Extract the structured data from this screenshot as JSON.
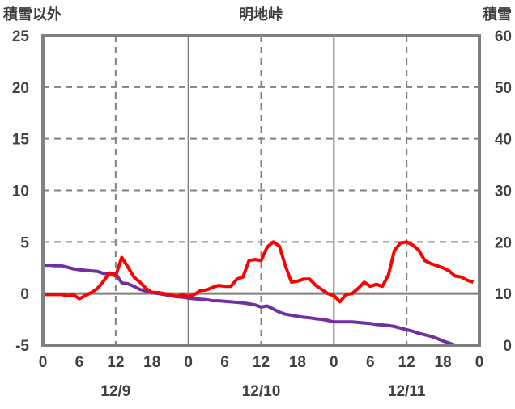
{
  "chart_data": {
    "type": "line",
    "title": "明地峠",
    "ylabel_left": "積雪以外",
    "ylabel_right": "積雪",
    "ylim_left": [
      -5,
      25
    ],
    "ylim_right": [
      0,
      60
    ],
    "yticks_left": [
      "25",
      "20",
      "15",
      "10",
      "5",
      "0",
      "-5"
    ],
    "yticks_right": [
      "60",
      "50",
      "40",
      "30",
      "20",
      "10",
      "0"
    ],
    "xlim_hours": [
      0,
      72
    ],
    "xticks": [
      "0",
      "6",
      "12",
      "18",
      "0",
      "6",
      "12",
      "18",
      "0",
      "6",
      "12",
      "18",
      "0"
    ],
    "date_labels": [
      "12/9",
      "12/10",
      "12/11"
    ],
    "grid": true,
    "x_hours": [
      0,
      1,
      2,
      3,
      4,
      5,
      6,
      7,
      8,
      9,
      10,
      11,
      12,
      13,
      14,
      15,
      16,
      17,
      18,
      19,
      20,
      21,
      22,
      23,
      24,
      25,
      26,
      27,
      28,
      29,
      30,
      31,
      32,
      33,
      34,
      35,
      36,
      37,
      38,
      39,
      40,
      41,
      42,
      43,
      44,
      45,
      46,
      47,
      48,
      49,
      50,
      51,
      52,
      53,
      54,
      55,
      56,
      57,
      58,
      59,
      60,
      61,
      62,
      63,
      64,
      65,
      66,
      67,
      68,
      69,
      70,
      71
    ],
    "series": [
      {
        "name": "積雪以外",
        "axis": "left",
        "color": "#ff0000",
        "values": [
          -0.1,
          -0.1,
          -0.1,
          -0.1,
          -0.2,
          -0.1,
          -0.5,
          -0.2,
          0.1,
          0.5,
          1.2,
          2.0,
          1.7,
          3.5,
          2.6,
          1.6,
          1.1,
          0.5,
          0.1,
          0.1,
          0,
          -0.1,
          -0.3,
          -0.1,
          -0.3,
          -0.1,
          0.3,
          0.35,
          0.6,
          0.8,
          0.7,
          0.7,
          1.4,
          1.6,
          3.2,
          3.3,
          3.2,
          4.5,
          5.0,
          4.6,
          2.7,
          1.1,
          1.2,
          1.4,
          1.4,
          0.8,
          0.4,
          0,
          -0.2,
          -0.8,
          -0.1,
          0,
          0.5,
          1.1,
          0.7,
          0.9,
          0.7,
          1.8,
          4.2,
          4.9,
          5.0,
          4.7,
          4.2,
          3.2,
          2.9,
          2.7,
          2.5,
          2.2,
          1.7,
          1.6,
          1.3,
          1.1
        ]
      },
      {
        "name": "積雪",
        "axis": "right",
        "color": "#7030a0",
        "values": [
          15.5,
          15.5,
          15.4,
          15.4,
          15.1,
          14.8,
          14.6,
          14.5,
          14.4,
          14.3,
          13.9,
          13.8,
          13.8,
          12.1,
          11.9,
          11.4,
          10.8,
          10.5,
          10.2,
          10.0,
          9.8,
          9.6,
          9.4,
          9.3,
          9.1,
          9.0,
          8.9,
          8.8,
          8.6,
          8.6,
          8.5,
          8.4,
          8.3,
          8.2,
          8.0,
          7.8,
          7.4,
          7.6,
          7.0,
          6.4,
          6.0,
          5.8,
          5.6,
          5.4,
          5.3,
          5.1,
          5.0,
          4.8,
          4.5,
          4.5,
          4.5,
          4.5,
          4.4,
          4.3,
          4.2,
          4.0,
          3.9,
          3.8,
          3.6,
          3.3,
          3.0,
          2.7,
          2.3,
          2.0,
          1.7,
          1.3,
          0.8,
          0.4,
          0,
          0,
          0,
          0
        ]
      }
    ]
  }
}
